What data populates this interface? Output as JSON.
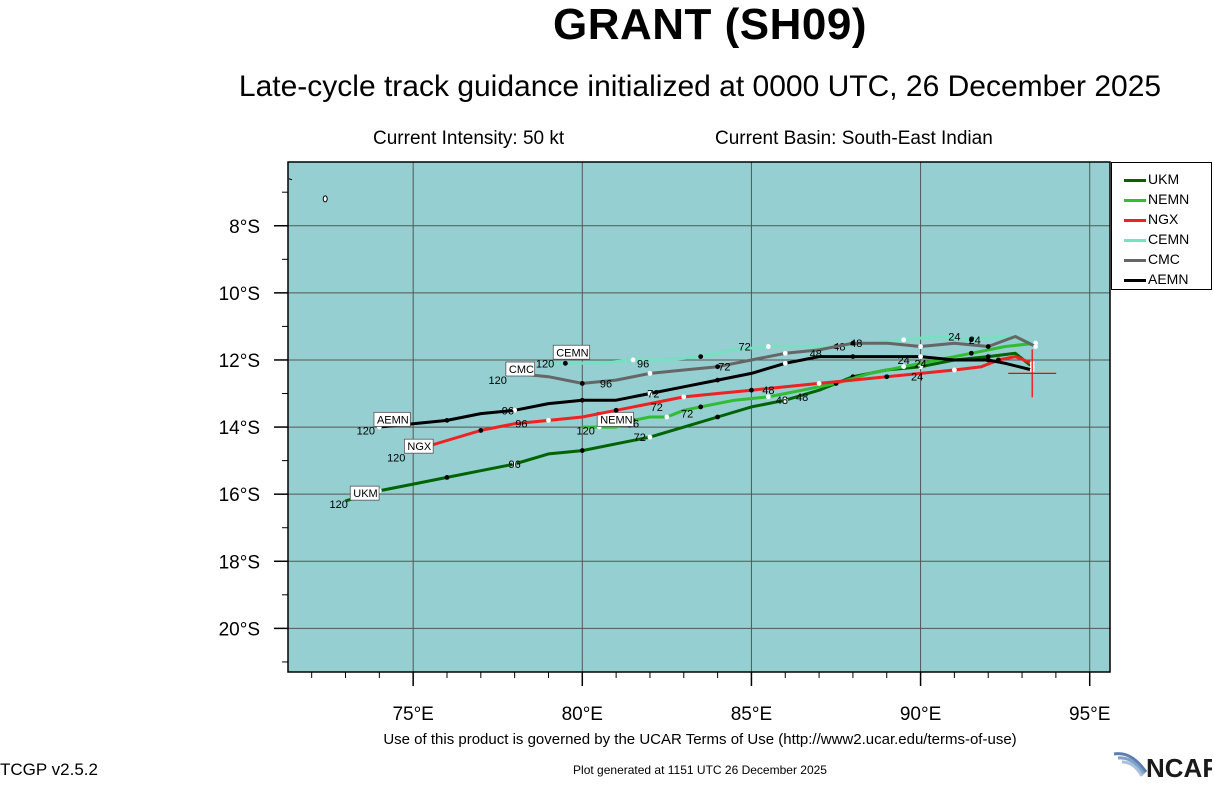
{
  "header": {
    "title": "GRANT (SH09)",
    "subtitle": "Late-cycle track guidance initialized at 0000 UTC, 26 December 2025",
    "intensity": "Current Intensity: 50 kt",
    "basin": "Current Basin: South-East Indian"
  },
  "footer": {
    "terms": "Use of this product is governed by the UCAR Terms of Use (http://www2.ucar.edu/terms-of-use)",
    "generated": "Plot generated at 1151 UTC   26 December 2025",
    "version": "TCGP v2.5.2",
    "logo_text": "NCAR"
  },
  "colors": {
    "ocean": "#96cfd1",
    "land": "#ffffff",
    "grid": "#555555",
    "current_position": "#ff0000"
  },
  "chart_data": {
    "type": "line",
    "title": "GRANT (SH09)",
    "xlabel": "",
    "ylabel": "",
    "xlim": [
      71.3,
      95.6
    ],
    "ylim": [
      -21.3,
      -6.1
    ],
    "x_ticks": [
      75,
      80,
      85,
      90,
      95
    ],
    "x_tick_labels": [
      "75°E",
      "80°E",
      "85°E",
      "90°E",
      "95°E"
    ],
    "y_ticks": [
      -8,
      -10,
      -12,
      -14,
      -16,
      -18,
      -20
    ],
    "y_tick_labels": [
      "8°S",
      "10°S",
      "12°S",
      "14°S",
      "16°S",
      "18°S",
      "20°S"
    ],
    "grid": true,
    "legend_position": "outside-right-top",
    "current_position": {
      "lon": 93.3,
      "lat": -12.4
    },
    "series": [
      {
        "name": "UKM",
        "color": "#006400",
        "points": [
          [
            93.3,
            -12.2
          ],
          [
            92.8,
            -11.8
          ],
          [
            92.0,
            -11.9
          ],
          [
            91.0,
            -12.0
          ],
          [
            90.0,
            -12.2
          ],
          [
            89.0,
            -12.3
          ],
          [
            88.0,
            -12.5
          ],
          [
            87.0,
            -12.9
          ],
          [
            86.0,
            -13.2
          ],
          [
            85.0,
            -13.4
          ],
          [
            84.0,
            -13.7
          ],
          [
            83.0,
            -14.0
          ],
          [
            82.0,
            -14.3
          ],
          [
            81.0,
            -14.5
          ],
          [
            80.0,
            -14.7
          ],
          [
            79.0,
            -14.8
          ],
          [
            78.0,
            -15.1
          ],
          [
            77.0,
            -15.3
          ],
          [
            76.0,
            -15.5
          ],
          [
            75.0,
            -15.7
          ],
          [
            74.0,
            -15.9
          ],
          [
            73.0,
            -16.2
          ]
        ],
        "labels": [
          {
            "text": "48",
            "lon": 86.5,
            "lat": -13.1
          },
          {
            "text": "72",
            "lon": 81.7,
            "lat": -14.3
          },
          {
            "text": "96",
            "lon": 78.0,
            "lat": -15.1
          },
          {
            "text": "120",
            "lon": 72.8,
            "lat": -16.3
          }
        ],
        "end_label": "UKM",
        "end_label_pos": [
          73.2,
          -16.0
        ]
      },
      {
        "name": "NEMN",
        "color": "#33bb33",
        "points": [
          [
            93.4,
            -11.5
          ],
          [
            92.5,
            -11.6
          ],
          [
            91.5,
            -11.8
          ],
          [
            90.5,
            -12.0
          ],
          [
            89.5,
            -12.2
          ],
          [
            88.5,
            -12.4
          ],
          [
            87.5,
            -12.7
          ],
          [
            86.5,
            -12.9
          ],
          [
            85.5,
            -13.1
          ],
          [
            84.5,
            -13.2
          ],
          [
            83.5,
            -13.4
          ],
          [
            83.0,
            -13.5
          ],
          [
            82.5,
            -13.7
          ],
          [
            82.0,
            -13.7
          ],
          [
            81.5,
            -13.8
          ],
          [
            81.0,
            -14.0
          ],
          [
            80.5,
            -14.0
          ],
          [
            80.0,
            -14.0
          ]
        ],
        "labels": [
          {
            "text": "24",
            "lon": 90.0,
            "lat": -12.1
          },
          {
            "text": "48",
            "lon": 85.9,
            "lat": -13.2
          },
          {
            "text": "72",
            "lon": 83.1,
            "lat": -13.6
          },
          {
            "text": "96",
            "lon": 81.5,
            "lat": -13.9
          },
          {
            "text": "120",
            "lon": 80.1,
            "lat": -14.1
          }
        ],
        "end_label": "NEMN",
        "end_label_pos": [
          80.5,
          -13.8
        ]
      },
      {
        "name": "NGX",
        "color": "#ee2222",
        "points": [
          [
            93.3,
            -12.1
          ],
          [
            92.8,
            -11.9
          ],
          [
            92.3,
            -12.0
          ],
          [
            91.8,
            -12.2
          ],
          [
            91.0,
            -12.3
          ],
          [
            90.0,
            -12.4
          ],
          [
            89.0,
            -12.5
          ],
          [
            88.0,
            -12.6
          ],
          [
            87.0,
            -12.7
          ],
          [
            86.0,
            -12.8
          ],
          [
            85.0,
            -12.9
          ],
          [
            84.0,
            -13.0
          ],
          [
            83.0,
            -13.1
          ],
          [
            82.0,
            -13.3
          ],
          [
            81.0,
            -13.5
          ],
          [
            80.0,
            -13.7
          ],
          [
            79.0,
            -13.8
          ],
          [
            78.0,
            -13.9
          ],
          [
            77.0,
            -14.1
          ],
          [
            76.0,
            -14.4
          ],
          [
            75.0,
            -14.7
          ]
        ],
        "labels": [
          {
            "text": "24",
            "lon": 89.9,
            "lat": -12.5
          },
          {
            "text": "48",
            "lon": 85.5,
            "lat": -12.9
          },
          {
            "text": "72",
            "lon": 82.2,
            "lat": -13.4
          },
          {
            "text": "96",
            "lon": 78.2,
            "lat": -13.9
          },
          {
            "text": "120",
            "lon": 74.5,
            "lat": -14.9
          }
        ],
        "end_label": "NGX",
        "end_label_pos": [
          74.8,
          -14.6
        ]
      },
      {
        "name": "CEMN",
        "color": "#77e0c0",
        "points": [
          [
            93.4,
            -11.5
          ],
          [
            92.5,
            -11.3
          ],
          [
            91.5,
            -11.4
          ],
          [
            90.5,
            -11.3
          ],
          [
            89.5,
            -11.4
          ],
          [
            88.5,
            -11.5
          ],
          [
            87.5,
            -11.6
          ],
          [
            86.5,
            -11.6
          ],
          [
            85.5,
            -11.6
          ],
          [
            84.5,
            -11.7
          ],
          [
            83.5,
            -11.9
          ],
          [
            82.5,
            -12.0
          ],
          [
            81.5,
            -12.0
          ],
          [
            80.5,
            -12.1
          ],
          [
            79.5,
            -12.1
          ],
          [
            79.0,
            -12.1
          ]
        ],
        "labels": [
          {
            "text": "24",
            "lon": 91.0,
            "lat": -11.3
          },
          {
            "text": "48",
            "lon": 87.6,
            "lat": -11.6
          },
          {
            "text": "72",
            "lon": 84.8,
            "lat": -11.6
          },
          {
            "text": "96",
            "lon": 81.8,
            "lat": -12.1
          },
          {
            "text": "120",
            "lon": 78.9,
            "lat": -12.1
          }
        ],
        "end_label": "CEMN",
        "end_label_pos": [
          79.2,
          -11.8
        ]
      },
      {
        "name": "CMC",
        "color": "#666666",
        "points": [
          [
            93.4,
            -11.6
          ],
          [
            92.8,
            -11.3
          ],
          [
            92.0,
            -11.6
          ],
          [
            91.0,
            -11.5
          ],
          [
            90.0,
            -11.6
          ],
          [
            89.0,
            -11.5
          ],
          [
            88.0,
            -11.5
          ],
          [
            87.0,
            -11.7
          ],
          [
            86.0,
            -11.8
          ],
          [
            85.0,
            -12.0
          ],
          [
            84.0,
            -12.2
          ],
          [
            83.0,
            -12.3
          ],
          [
            82.0,
            -12.4
          ],
          [
            81.0,
            -12.6
          ],
          [
            80.0,
            -12.7
          ],
          [
            79.0,
            -12.5
          ],
          [
            78.0,
            -12.4
          ]
        ],
        "labels": [
          {
            "text": "24",
            "lon": 91.6,
            "lat": -11.4
          },
          {
            "text": "48",
            "lon": 88.1,
            "lat": -11.5
          },
          {
            "text": "72",
            "lon": 84.2,
            "lat": -12.2
          },
          {
            "text": "96",
            "lon": 80.7,
            "lat": -12.7
          },
          {
            "text": "120",
            "lon": 77.5,
            "lat": -12.6
          }
        ],
        "end_label": "CMC",
        "end_label_pos": [
          77.8,
          -12.3
        ]
      },
      {
        "name": "AEMN",
        "color": "#000000",
        "points": [
          [
            93.3,
            -12.3
          ],
          [
            92.5,
            -12.1
          ],
          [
            92.0,
            -12.0
          ],
          [
            91.0,
            -12.0
          ],
          [
            90.0,
            -11.9
          ],
          [
            89.0,
            -11.9
          ],
          [
            88.0,
            -11.9
          ],
          [
            87.0,
            -11.9
          ],
          [
            86.0,
            -12.1
          ],
          [
            85.0,
            -12.4
          ],
          [
            84.0,
            -12.6
          ],
          [
            83.0,
            -12.8
          ],
          [
            82.0,
            -13.0
          ],
          [
            81.0,
            -13.2
          ],
          [
            80.0,
            -13.2
          ],
          [
            79.0,
            -13.3
          ],
          [
            78.0,
            -13.5
          ],
          [
            77.0,
            -13.6
          ],
          [
            76.0,
            -13.8
          ],
          [
            75.0,
            -13.9
          ],
          [
            74.0,
            -14.0
          ]
        ],
        "labels": [
          {
            "text": "24",
            "lon": 89.5,
            "lat": -12.0
          },
          {
            "text": "48",
            "lon": 86.9,
            "lat": -11.8
          },
          {
            "text": "72",
            "lon": 82.1,
            "lat": -13.0
          },
          {
            "text": "96",
            "lon": 77.8,
            "lat": -13.5
          },
          {
            "text": "120",
            "lon": 73.6,
            "lat": -14.1
          }
        ],
        "end_label": "AEMN",
        "end_label_pos": [
          73.9,
          -13.8
        ]
      }
    ]
  }
}
